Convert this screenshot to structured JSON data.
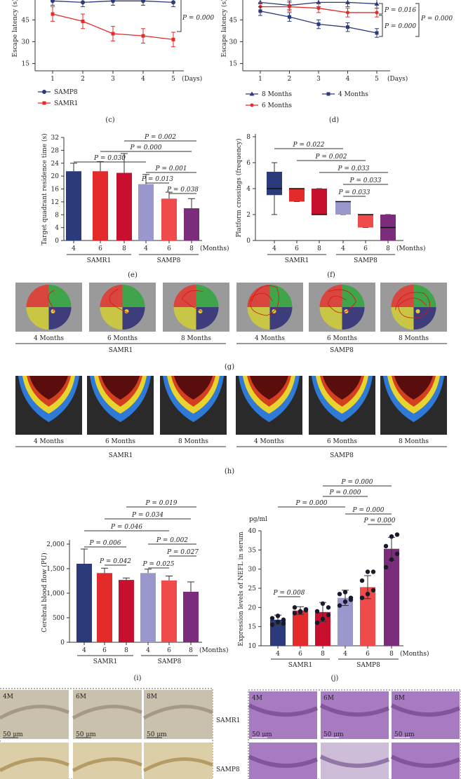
{
  "panel_c": {
    "caption": "(c)",
    "ylabel": "Escape latency (s)",
    "yticks": [
      "15",
      "30",
      "45"
    ],
    "xticks": [
      "1",
      "2",
      "3",
      "4",
      "5"
    ],
    "xunit": "(Days)",
    "p_label": "P = 0.000",
    "legend": [
      {
        "name": "SAMP8",
        "color": "#2b3a7a"
      },
      {
        "name": "SAMR1",
        "color": "#e32b2b"
      }
    ]
  },
  "panel_d": {
    "caption": "(d)",
    "ylabel": "Escape latency (s)",
    "yticks": [
      "15",
      "30",
      "45"
    ],
    "xticks": [
      "1",
      "2",
      "3",
      "4",
      "5"
    ],
    "xunit": "(Days)",
    "p_labels": [
      "P = 0.016",
      "P = 0.000",
      "P = 0.000"
    ],
    "legend": [
      {
        "name": "8 Months",
        "color": "#2b3a7a"
      },
      {
        "name": "4 Months",
        "color": "#2b3a7a"
      },
      {
        "name": "6 Months",
        "color": "#e32b2b"
      }
    ]
  },
  "panel_e": {
    "caption": "(e)",
    "ylabel": "Target quadrant residence time (s)",
    "yticks": [
      "0",
      "4",
      "8",
      "12",
      "16",
      "20",
      "24",
      "28",
      "32"
    ],
    "xticks": [
      "4",
      "6",
      "8",
      "4",
      "6",
      "8"
    ],
    "xunit": "(Months)",
    "groups": [
      "SAMR1",
      "SAMP8"
    ],
    "p_labels": [
      "P = 0.002",
      "P = 0.000",
      "P = 0.030",
      "P = 0.001",
      "P = 0.013",
      "P = 0.038"
    ]
  },
  "panel_f": {
    "caption": "(f)",
    "ylabel": "Platform crossings (frequency)",
    "yticks": [
      "0",
      "2",
      "4",
      "6",
      "8"
    ],
    "xticks": [
      "4",
      "6",
      "8",
      "4",
      "6",
      "8"
    ],
    "xunit": "(Months)",
    "groups": [
      "SAMR1",
      "SAMP8"
    ],
    "p_labels": [
      "P = 0.022",
      "P = 0.002",
      "P = 0.033",
      "P = 0.033",
      "P = 0.033"
    ]
  },
  "panel_g": {
    "caption": "(g)",
    "labels": [
      "4 Months",
      "6 Months",
      "8 Months",
      "4 Months",
      "6 Months",
      "8 Months"
    ],
    "groups": [
      "SAMR1",
      "SAMP8"
    ]
  },
  "panel_h": {
    "caption": "(h)",
    "labels": [
      "4 Months",
      "6 Months",
      "8 Months",
      "4 Months",
      "6 Months",
      "8 Months"
    ],
    "groups": [
      "SAMR1",
      "SAMP8"
    ]
  },
  "panel_i": {
    "caption": "(i)",
    "ylabel": "Cerebral blood flow (PU)",
    "yticks": [
      "0",
      "500",
      "1,000",
      "1,500",
      "2,000"
    ],
    "xticks": [
      "4",
      "6",
      "8",
      "4",
      "6",
      "8"
    ],
    "xunit": "(Months)",
    "groups": [
      "SAMR1",
      "SAMP8"
    ],
    "p_labels": [
      "P = 0.019",
      "P = 0.034",
      "P = 0.046",
      "P = 0.006",
      "P = 0.002",
      "P = 0.042",
      "P = 0.027",
      "P = 0.025"
    ]
  },
  "panel_j": {
    "caption": "(j)",
    "unit": "pg/ml",
    "ylabel": "Expression levels of NEFL in serum",
    "yticks": [
      "10",
      "15",
      "20",
      "25",
      "30",
      "35",
      "40"
    ],
    "xticks": [
      "4",
      "6",
      "8",
      "4",
      "6",
      "8"
    ],
    "xunit": "(Months)",
    "groups": [
      "SAMR1",
      "SAMP8"
    ],
    "p_labels": [
      "P = 0.000",
      "P = 0.000",
      "P = 0.000",
      "P = 0.000",
      "P = 0.000",
      "P = 0.008"
    ]
  },
  "panel_k": {
    "tiles": [
      "4M",
      "6M",
      "8M"
    ],
    "scale": "50 μm",
    "rows": [
      "SAMR1",
      "SAMP8"
    ]
  },
  "chart_data": [
    {
      "type": "line",
      "title": "(c)",
      "xlabel": "Days",
      "ylabel": "Escape latency (s)",
      "x": [
        1,
        2,
        3,
        4,
        5
      ],
      "ylim": [
        10,
        62
      ],
      "series": [
        {
          "name": "SAMP8",
          "values": [
            58,
            57,
            58,
            58,
            57
          ]
        },
        {
          "name": "SAMR1",
          "values": [
            49,
            44,
            35.5,
            34,
            31.5
          ]
        }
      ]
    },
    {
      "type": "line",
      "title": "(d)",
      "xlabel": "Days",
      "ylabel": "Escape latency (s)",
      "x": [
        1,
        2,
        3,
        4,
        5
      ],
      "ylim": [
        10,
        62
      ],
      "series": [
        {
          "name": "8 Months",
          "values": [
            57,
            55,
            57,
            57,
            56
          ]
        },
        {
          "name": "6 Months",
          "values": [
            54,
            54,
            53,
            50,
            50
          ]
        },
        {
          "name": "4 Months",
          "values": [
            51,
            47,
            42,
            40,
            36
          ]
        }
      ]
    },
    {
      "type": "bar",
      "title": "(e)",
      "ylabel": "Target quadrant residence time (s)",
      "categories": [
        "SAMR1 4",
        "SAMR1 6",
        "SAMR1 8",
        "SAMP8 4",
        "SAMP8 6",
        "SAMP8 8"
      ],
      "values": [
        21.5,
        21.5,
        21,
        17.5,
        13,
        10
      ],
      "errors": [
        2.5,
        3,
        6,
        3,
        2,
        3
      ],
      "ylim": [
        0,
        32
      ]
    },
    {
      "type": "box",
      "title": "(f)",
      "ylabel": "Platform crossings (frequency)",
      "categories": [
        "SAMR1 4",
        "SAMR1 6",
        "SAMR1 8",
        "SAMP8 4",
        "SAMP8 6",
        "SAMP8 8"
      ],
      "boxes": [
        {
          "min": 2,
          "q1": 3.5,
          "med": 4,
          "q3": 5.3,
          "max": 6
        },
        {
          "min": 3,
          "q1": 3,
          "med": 4,
          "q3": 4,
          "max": 4
        },
        {
          "min": 2,
          "q1": 2,
          "med": 2,
          "q3": 4,
          "max": 4
        },
        {
          "min": 2,
          "q1": 2,
          "med": 3,
          "q3": 3,
          "max": 3
        },
        {
          "min": 1,
          "q1": 1,
          "med": 2,
          "q3": 2,
          "max": 2
        },
        {
          "min": 0,
          "q1": 0,
          "med": 1,
          "q3": 2,
          "max": 2
        }
      ],
      "ylim": [
        0,
        8
      ]
    },
    {
      "type": "bar",
      "title": "(i)",
      "ylabel": "Cerebral blood flow (PU)",
      "categories": [
        "SAMR1 4",
        "SAMR1 6",
        "SAMR1 8",
        "SAMP8 4",
        "SAMP8 6",
        "SAMP8 8"
      ],
      "values": [
        1600,
        1410,
        1270,
        1410,
        1260,
        1030
      ],
      "errors": [
        300,
        100,
        40,
        80,
        90,
        200
      ],
      "ylim": [
        0,
        2000
      ]
    },
    {
      "type": "bar",
      "title": "(j)",
      "ylabel": "Expression levels of NEFL in serum",
      "categories": [
        "SAMR1 4",
        "SAMR1 6",
        "SAMR1 8",
        "SAMP8 4",
        "SAMP8 6",
        "SAMP8 8"
      ],
      "values": [
        16.8,
        19.2,
        18.8,
        22.5,
        25.3,
        35.3
      ],
      "errors": [
        1.2,
        1,
        2.5,
        2,
        3,
        3
      ],
      "ylim": [
        10,
        40
      ],
      "points": [
        [
          15.5,
          16.2,
          16.8,
          17.2,
          17.8,
          15.8
        ],
        [
          18.5,
          19,
          19.5,
          20,
          18.8,
          19.3
        ],
        [
          16,
          17,
          18,
          19,
          21,
          20
        ],
        [
          20.5,
          21.5,
          22.5,
          23.5,
          24,
          22
        ],
        [
          22.5,
          23.5,
          24.5,
          27,
          29.3,
          29.3
        ],
        [
          30.5,
          32.5,
          34,
          36,
          38.5,
          39
        ]
      ]
    }
  ],
  "colors": {
    "navy": "#2b3a7a",
    "red": "#e32b2b",
    "crimson": "#c8102e",
    "lavender": "#9a97cc",
    "lightred": "#ef4b4b",
    "purple": "#7b2d7b"
  }
}
